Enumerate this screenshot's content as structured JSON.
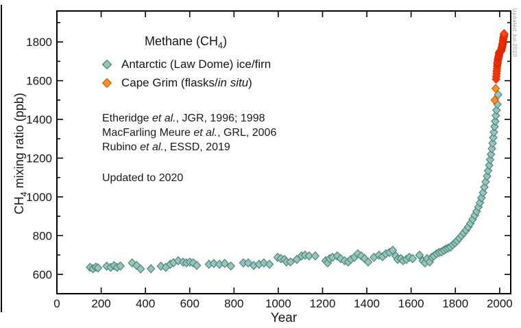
{
  "figure": {
    "legend": {
      "title": {
        "pre": "Methane (CH",
        "sub": "4",
        "post": ")"
      },
      "entries": [
        {
          "marker": "law-dome-diamond",
          "segments": [
            {
              "text": "Antarctic (Law Dome) ice/firn",
              "italic": false
            }
          ]
        },
        {
          "marker": "cape-grim-diamond",
          "segments": [
            {
              "text": "Cape Grim (flasks/",
              "italic": false
            },
            {
              "text": "in situ",
              "italic": true
            },
            {
              "text": ")",
              "italic": false
            }
          ]
        }
      ]
    },
    "citations": [
      {
        "segments": [
          {
            "text": "Etheridge ",
            "italic": false
          },
          {
            "text": "et al.",
            "italic": true
          },
          {
            "text": ", JGR, 1996; 1998",
            "italic": false
          }
        ]
      },
      {
        "segments": [
          {
            "text": "MacFarling Meure ",
            "italic": false
          },
          {
            "text": "et al.",
            "italic": true
          },
          {
            "text": ", GRL, 2006",
            "italic": false
          }
        ]
      },
      {
        "segments": [
          {
            "text": "Rubino ",
            "italic": false
          },
          {
            "text": "et al.",
            "italic": true
          },
          {
            "text": ", ESSD, 2019",
            "italic": false
          }
        ]
      }
    ],
    "updated_note": "Updated to 2020",
    "watermark": "Updated Jul-2020",
    "y_title": {
      "pre": "CH",
      "sub": "4",
      "post": " mixing ratio (ppb)"
    },
    "x_title": "Year"
  },
  "chart_data": {
    "type": "scatter",
    "title": "Methane (CH4)",
    "xlabel": "Year",
    "ylabel": "CH4 mixing ratio (ppb)",
    "x_range": [
      0,
      2050
    ],
    "y_range": [
      500,
      1960
    ],
    "x_ticks": [
      0,
      200,
      400,
      600,
      800,
      1000,
      1200,
      1400,
      1600,
      1800,
      2000
    ],
    "y_ticks": [
      600,
      800,
      1000,
      1200,
      1400,
      1600,
      1800
    ],
    "y_minor_ticks": [
      700,
      900,
      1100,
      1300,
      1500,
      1700,
      1900
    ],
    "grid": false,
    "legend_position": "upper-left-inside",
    "marker": "diamond",
    "series": [
      {
        "name": "Antarctic (Law Dome) ice/firn",
        "fill": "#9ac4ba",
        "stroke": "#4a867e",
        "points": [
          [
            150,
            636
          ],
          [
            163,
            629
          ],
          [
            176,
            637
          ],
          [
            186,
            633
          ],
          [
            225,
            642
          ],
          [
            243,
            636
          ],
          [
            258,
            645
          ],
          [
            272,
            636
          ],
          [
            287,
            643
          ],
          [
            340,
            659
          ],
          [
            360,
            646
          ],
          [
            378,
            628
          ],
          [
            425,
            629
          ],
          [
            470,
            642
          ],
          [
            492,
            636
          ],
          [
            512,
            652
          ],
          [
            527,
            660
          ],
          [
            548,
            670
          ],
          [
            570,
            663
          ],
          [
            585,
            659
          ],
          [
            601,
            663
          ],
          [
            616,
            659
          ],
          [
            632,
            646
          ],
          [
            687,
            652
          ],
          [
            709,
            656
          ],
          [
            734,
            652
          ],
          [
            758,
            656
          ],
          [
            786,
            643
          ],
          [
            842,
            659
          ],
          [
            864,
            659
          ],
          [
            889,
            646
          ],
          [
            913,
            652
          ],
          [
            935,
            659
          ],
          [
            960,
            652
          ],
          [
            997,
            688
          ],
          [
            1012,
            681
          ],
          [
            1028,
            677
          ],
          [
            1037,
            664
          ],
          [
            1055,
            664
          ],
          [
            1084,
            677
          ],
          [
            1105,
            695
          ],
          [
            1121,
            699
          ],
          [
            1139,
            695
          ],
          [
            1167,
            695
          ],
          [
            1214,
            670
          ],
          [
            1223,
            659
          ],
          [
            1232,
            681
          ],
          [
            1245,
            688
          ],
          [
            1266,
            695
          ],
          [
            1282,
            681
          ],
          [
            1300,
            670
          ],
          [
            1316,
            664
          ],
          [
            1328,
            677
          ],
          [
            1344,
            688
          ],
          [
            1359,
            706
          ],
          [
            1375,
            695
          ],
          [
            1390,
            681
          ],
          [
            1406,
            664
          ],
          [
            1432,
            688
          ],
          [
            1455,
            699
          ],
          [
            1471,
            691
          ],
          [
            1486,
            706
          ],
          [
            1502,
            713
          ],
          [
            1517,
            724
          ],
          [
            1530,
            695
          ],
          [
            1539,
            677
          ],
          [
            1554,
            681
          ],
          [
            1564,
            670
          ],
          [
            1579,
            677
          ],
          [
            1592,
            688
          ],
          [
            1607,
            681
          ],
          [
            1638,
            699
          ],
          [
            1653,
            670
          ],
          [
            1663,
            659
          ],
          [
            1672,
            681
          ],
          [
            1684,
            664
          ],
          [
            1694,
            688
          ],
          [
            1703,
            695
          ],
          [
            1715,
            706
          ],
          [
            1726,
            713
          ],
          [
            1737,
            716
          ],
          [
            1748,
            724
          ],
          [
            1758,
            731
          ],
          [
            1768,
            736
          ],
          [
            1778,
            741
          ],
          [
            1788,
            752
          ],
          [
            1798,
            762
          ],
          [
            1808,
            773
          ],
          [
            1818,
            787
          ],
          [
            1828,
            800
          ],
          [
            1838,
            814
          ],
          [
            1848,
            828
          ],
          [
            1858,
            845
          ],
          [
            1868,
            863
          ],
          [
            1878,
            884
          ],
          [
            1888,
            905
          ],
          [
            1896,
            925
          ],
          [
            1904,
            948
          ],
          [
            1911,
            970
          ],
          [
            1918,
            995
          ],
          [
            1925,
            1022
          ],
          [
            1931,
            1050
          ],
          [
            1937,
            1078
          ],
          [
            1943,
            1107
          ],
          [
            1948,
            1135
          ],
          [
            1953,
            1163
          ],
          [
            1957,
            1192
          ],
          [
            1961,
            1220
          ],
          [
            1965,
            1249
          ],
          [
            1968,
            1277
          ],
          [
            1971,
            1306
          ],
          [
            1974,
            1334
          ],
          [
            1977,
            1363
          ],
          [
            1980,
            1391
          ],
          [
            1983,
            1420
          ],
          [
            1986,
            1448
          ],
          [
            1990,
            1478
          ],
          [
            1993,
            1528
          ]
        ]
      },
      {
        "name": "Cape Grim flasks",
        "fill": "#f7941d",
        "stroke": "#d65a14",
        "points": [
          [
            1978,
            1500
          ],
          [
            1982,
            1560
          ]
        ]
      },
      {
        "name": "Cape Grim in situ",
        "fill": "#f84513",
        "stroke": "#e02800",
        "points": [
          [
            1984,
            1608
          ],
          [
            1985,
            1622
          ],
          [
            1986,
            1636
          ],
          [
            1987,
            1649
          ],
          [
            1988,
            1662
          ],
          [
            1989,
            1675
          ],
          [
            1990,
            1686
          ],
          [
            1990,
            1691
          ],
          [
            1991,
            1696
          ],
          [
            1992,
            1706
          ],
          [
            1993,
            1710
          ],
          [
            1994,
            1717
          ],
          [
            1995,
            1722
          ],
          [
            1996,
            1727
          ],
          [
            1997,
            1731
          ],
          [
            1998,
            1738
          ],
          [
            1998,
            1742
          ],
          [
            1999,
            1746
          ],
          [
            2000,
            1748
          ],
          [
            2001,
            1750
          ],
          [
            2002,
            1752
          ],
          [
            2003,
            1755
          ],
          [
            2004,
            1754
          ],
          [
            2005,
            1752
          ],
          [
            2006,
            1751
          ],
          [
            2007,
            1754
          ],
          [
            2008,
            1760
          ],
          [
            2009,
            1765
          ],
          [
            2010,
            1770
          ],
          [
            2011,
            1775
          ],
          [
            2012,
            1780
          ],
          [
            2013,
            1786
          ],
          [
            2013,
            1790
          ],
          [
            2014,
            1794
          ],
          [
            2015,
            1803
          ],
          [
            2016,
            1811
          ],
          [
            2017,
            1819
          ],
          [
            2018,
            1825
          ],
          [
            2019,
            1830
          ],
          [
            2020,
            1836
          ],
          [
            2020,
            1843
          ]
        ]
      }
    ]
  }
}
